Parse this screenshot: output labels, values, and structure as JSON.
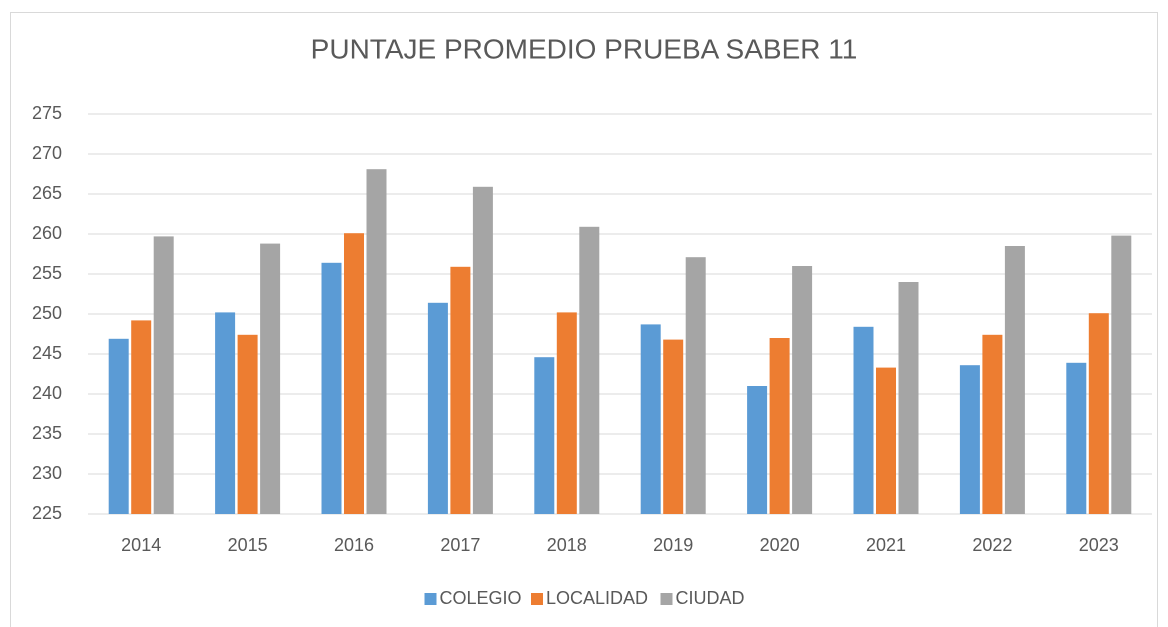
{
  "chart_data": {
    "type": "bar",
    "title": "PUNTAJE PROMEDIO PRUEBA SABER 11",
    "categories": [
      "2014",
      "2015",
      "2016",
      "2017",
      "2018",
      "2019",
      "2020",
      "2021",
      "2022",
      "2023"
    ],
    "series": [
      {
        "name": "COLEGIO",
        "color": "#5b9bd5",
        "values": [
          246.9,
          250.2,
          256.4,
          251.4,
          244.6,
          248.7,
          241.0,
          248.4,
          243.6,
          243.9
        ]
      },
      {
        "name": "LOCALIDAD",
        "color": "#ed7d31",
        "values": [
          249.2,
          247.4,
          260.1,
          255.9,
          250.2,
          246.8,
          247.0,
          243.3,
          247.4,
          250.1
        ]
      },
      {
        "name": "CIUDAD",
        "color": "#a5a5a5",
        "values": [
          259.7,
          258.8,
          268.1,
          265.9,
          260.9,
          257.1,
          256.0,
          254.0,
          258.5,
          259.8
        ]
      }
    ],
    "ylim": [
      225,
      275
    ],
    "yticks": [
      225,
      230,
      235,
      240,
      245,
      250,
      255,
      260,
      265,
      270,
      275
    ],
    "grid": true,
    "legend": "bottom"
  }
}
